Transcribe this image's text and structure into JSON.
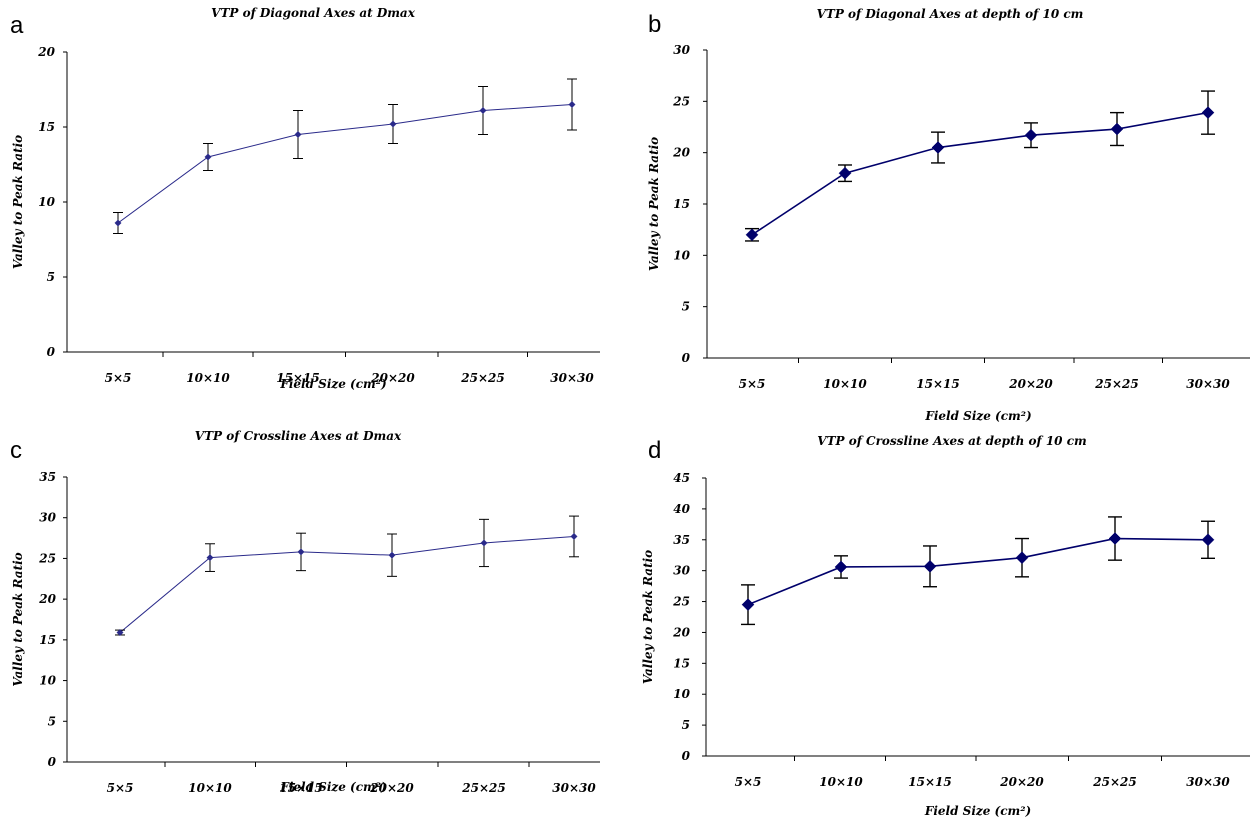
{
  "chart_data": [
    {
      "panel": "a",
      "type": "line",
      "title": "VTP of Diagonal Axes at Dmax",
      "xlabel": "Field Size (cm²)",
      "ylabel": "Valley to Peak Ratio",
      "categories": [
        "5×5",
        "10×10",
        "15×15",
        "20×20",
        "25×25",
        "30×30"
      ],
      "ylim": [
        0,
        20
      ],
      "yticks": [
        0,
        5,
        10,
        15,
        20
      ],
      "series": [
        {
          "values": [
            8.6,
            13.0,
            14.5,
            15.2,
            16.1,
            16.5
          ],
          "errors": [
            0.7,
            0.9,
            1.6,
            1.3,
            1.6,
            1.7
          ]
        }
      ],
      "color": "#2a2a8a",
      "marker": "small",
      "grid": false,
      "legend": "none"
    },
    {
      "panel": "b",
      "type": "line",
      "title": "VTP of Diagonal Axes at depth of 10 cm",
      "xlabel": "Field Size (cm²)",
      "ylabel": "Valley to Peak Ratio",
      "categories": [
        "5×5",
        "10×10",
        "15×15",
        "20×20",
        "25×25",
        "30×30"
      ],
      "ylim": [
        0,
        30
      ],
      "yticks": [
        0,
        5,
        10,
        15,
        20,
        25,
        30
      ],
      "series": [
        {
          "values": [
            12.0,
            18.0,
            20.5,
            21.7,
            22.3,
            23.9
          ],
          "errors": [
            0.6,
            0.8,
            1.5,
            1.2,
            1.6,
            2.1
          ]
        }
      ],
      "color": "#00006b",
      "marker": "large",
      "grid": false,
      "legend": "none"
    },
    {
      "panel": "c",
      "type": "line",
      "title": "VTP of Crossline Axes at Dmax",
      "xlabel": "Field Size (cm²)",
      "ylabel": "Valley to Peak Ratio",
      "categories": [
        "5×5",
        "10×10",
        "15×15",
        "20×20",
        "25×25",
        "30×30"
      ],
      "ylim": [
        0,
        35
      ],
      "yticks": [
        0,
        5,
        10,
        15,
        20,
        25,
        30,
        35
      ],
      "series": [
        {
          "values": [
            15.9,
            25.1,
            25.8,
            25.4,
            26.9,
            27.7
          ],
          "errors": [
            0.3,
            1.7,
            2.3,
            2.6,
            2.9,
            2.5
          ]
        }
      ],
      "color": "#2a2a8a",
      "marker": "small",
      "grid": false,
      "legend": "none"
    },
    {
      "panel": "d",
      "type": "line",
      "title": "VTP of Crossline Axes at depth of 10 cm",
      "xlabel": "Field Size (cm²)",
      "ylabel": "Valley to Peak Ratio",
      "categories": [
        "5×5",
        "10×10",
        "15×15",
        "20×20",
        "25×25",
        "30×30"
      ],
      "ylim": [
        0,
        45
      ],
      "yticks": [
        0,
        5,
        10,
        15,
        20,
        25,
        30,
        35,
        40,
        45
      ],
      "series": [
        {
          "values": [
            24.5,
            30.6,
            30.7,
            32.1,
            35.2,
            35.0
          ],
          "errors": [
            3.2,
            1.8,
            3.3,
            3.1,
            3.5,
            3.0
          ]
        }
      ],
      "color": "#00006b",
      "marker": "large",
      "grid": false,
      "legend": "none"
    }
  ]
}
